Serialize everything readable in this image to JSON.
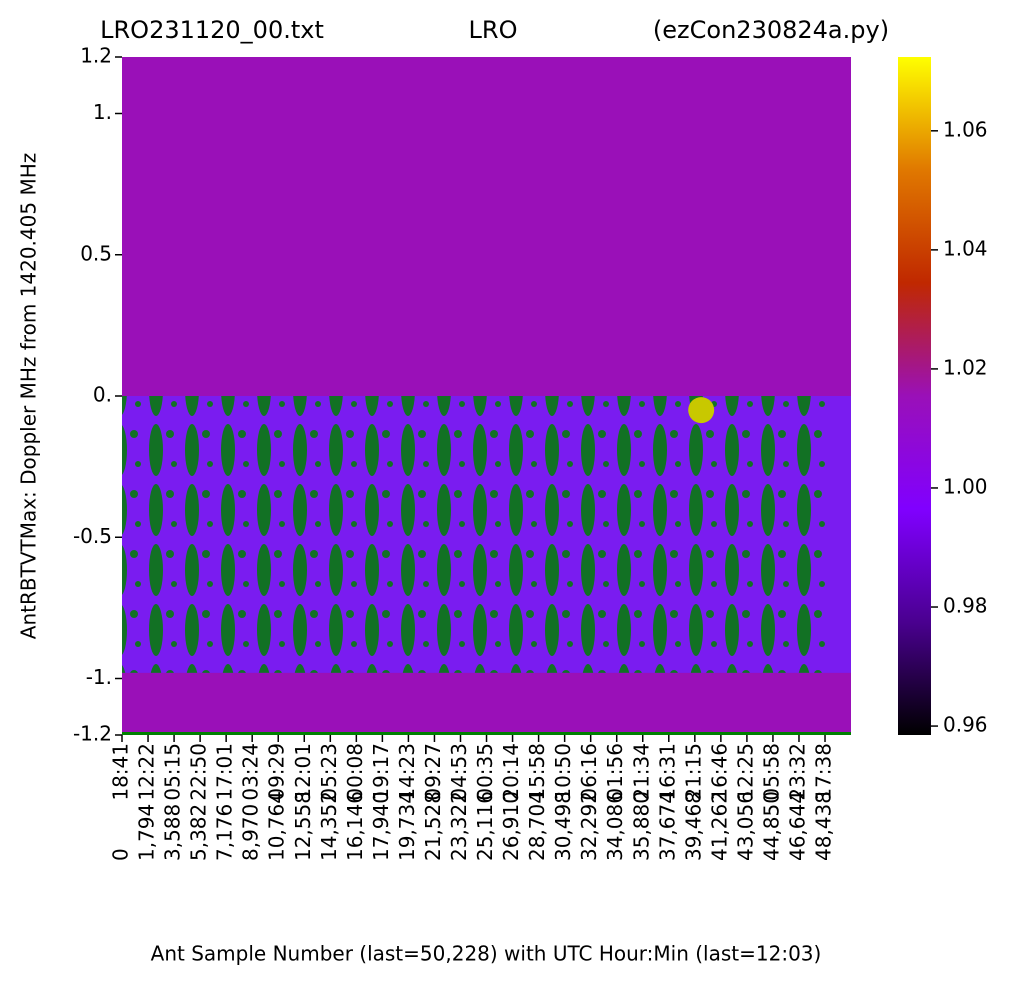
{
  "chart_data": {
    "type": "heatmap",
    "title": [
      "LRO231120_00.txt",
      "LRO",
      "(ezCon230824a.py)"
    ],
    "x_label": "Ant Sample Number (last=50,228) with UTC Hour:Min (last=12:03)",
    "y_label": "AntRBTVTMax:  Doppler MHz from 1420.405 MHz",
    "xlim": [
      0,
      50228
    ],
    "ylim": [
      -1.2,
      1.2
    ],
    "xticks": [
      0,
      {
        "value": 1794,
        "label": "1,794"
      },
      {
        "value": 3588,
        "label": "3,588"
      },
      {
        "value": 5382,
        "label": "5,382"
      },
      {
        "value": 7176,
        "label": "7,176"
      },
      {
        "value": 8970,
        "label": "8,970"
      },
      {
        "value": 10764,
        "label": "10,764"
      },
      {
        "value": 12558,
        "label": "12,558"
      },
      {
        "value": 14352,
        "label": "14,352"
      },
      {
        "value": 16146,
        "label": "16,146"
      },
      {
        "value": 17940,
        "label": "17,940"
      },
      {
        "value": 19734,
        "label": "19,734"
      },
      {
        "value": 21528,
        "label": "21,528"
      },
      {
        "value": 23322,
        "label": "23,322"
      },
      {
        "value": 25116,
        "label": "25,116"
      },
      {
        "value": 26910,
        "label": "26,910"
      },
      {
        "value": 28704,
        "label": "28,704"
      },
      {
        "value": 30498,
        "label": "30,498"
      },
      {
        "value": 32292,
        "label": "32,292"
      },
      {
        "value": 34086,
        "label": "34,086"
      },
      {
        "value": 35880,
        "label": "35,880"
      },
      {
        "value": 37674,
        "label": "37,674"
      },
      {
        "value": 39468,
        "label": "39,468"
      },
      {
        "value": 41262,
        "label": "41,262"
      },
      {
        "value": 43056,
        "label": "43,056"
      },
      {
        "value": 44850,
        "label": "44,850"
      },
      {
        "value": 46644,
        "label": "46,644"
      },
      {
        "value": 48438,
        "label": "48,438"
      }
    ],
    "xtick_times": [
      "18:41",
      "12:22",
      "05:15",
      "22:50",
      "17:01",
      "03:24",
      "09:29",
      "12:01",
      "05:23",
      "00:08",
      "19:17",
      "14:23",
      "09:27",
      "04:53",
      "00:35",
      "20:14",
      "15:58",
      "10:50",
      "06:16",
      "01:56",
      "21:34",
      "16:31",
      "21:15",
      "16:46",
      "12:25",
      "05:58",
      "23:32",
      "17:38"
    ],
    "yticks": [
      {
        "value": 1.2,
        "label": "1.2"
      },
      {
        "value": 1,
        "label": "1."
      },
      0.5,
      {
        "value": 0,
        "label": "0."
      },
      -0.5,
      {
        "value": -1,
        "label": "-1."
      },
      -1.2
    ],
    "colorbar": {
      "lim": [
        0.9585,
        1.0724
      ],
      "ticks": [
        0.96,
        0.98,
        {
          "value": 1,
          "label": "1.00"
        },
        1.02,
        1.04,
        1.06
      ],
      "colormap": [
        "#000000",
        "#4a0090",
        "#8000ff",
        "#9a10b8",
        "#c02800",
        "#e07800",
        "#ffff00"
      ]
    },
    "bands": [
      {
        "from": 0,
        "to": 1.2,
        "color": "#9a10b8"
      },
      {
        "from": -1.2,
        "to": 0,
        "color": "#9a10b8"
      },
      {
        "from": -0.98,
        "to": 0,
        "color": "#7a1cf0"
      }
    ],
    "marker": {
      "x": 39906,
      "y": -0.05,
      "color": "#c8c800"
    }
  }
}
